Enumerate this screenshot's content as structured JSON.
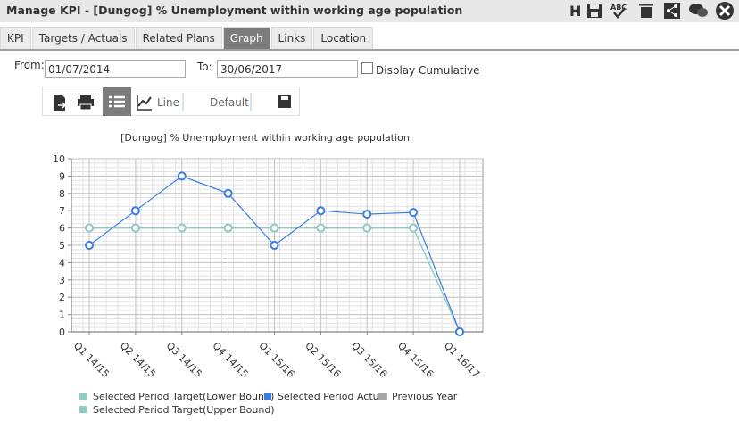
{
  "window": {
    "title": "Manage KPI - [Dungog] % Unemployment within working age population",
    "help_key": "H",
    "spell_label": "ABC"
  },
  "tabs": [
    "KPI",
    "Targets / Actuals",
    "Related Plans",
    "Graph",
    "Links",
    "Location"
  ],
  "active_tab": 3,
  "filters": {
    "from_label": "From:",
    "from_value": "01/07/2014",
    "to_label": "To:",
    "to_value": "30/06/2017",
    "cumulative_label": "Display Cumulative",
    "cumulative_checked": false
  },
  "graph_toolbar": {
    "chart_type": "Line",
    "preset": "Default"
  },
  "chart_data": {
    "type": "line",
    "title": "[Dungog] % Unemployment within working age population",
    "categories": [
      "Q1 14/15",
      "Q2 14/15",
      "Q3 14/15",
      "Q4 14/15",
      "Q1 15/16",
      "Q2 15/16",
      "Q3 15/16",
      "Q4 15/16",
      "Q1 16/17"
    ],
    "series": [
      {
        "name": "Selected Period Target(Lower Bound)",
        "color": "#8fcac6",
        "values": [
          6,
          6,
          6,
          6,
          6,
          6,
          6,
          6,
          0
        ]
      },
      {
        "name": "Selected Period Actual",
        "color": "#3a7fe0",
        "values": [
          5,
          7,
          9,
          8,
          5,
          7,
          6.8,
          6.9,
          0
        ]
      },
      {
        "name": "Previous Year",
        "color": "#a6a6a6",
        "values": [
          null,
          null,
          null,
          null,
          null,
          null,
          null,
          null,
          null
        ]
      },
      {
        "name": "Selected Period Target(Upper Bound)",
        "color": "#8fcac6",
        "values": [
          6,
          6,
          6,
          6,
          6,
          6,
          6,
          6,
          0
        ]
      }
    ],
    "ylim": [
      0,
      10
    ],
    "yticks": [
      0,
      1,
      2,
      3,
      4,
      5,
      6,
      7,
      8,
      9,
      10
    ],
    "grid": true,
    "minor_grid": true
  }
}
